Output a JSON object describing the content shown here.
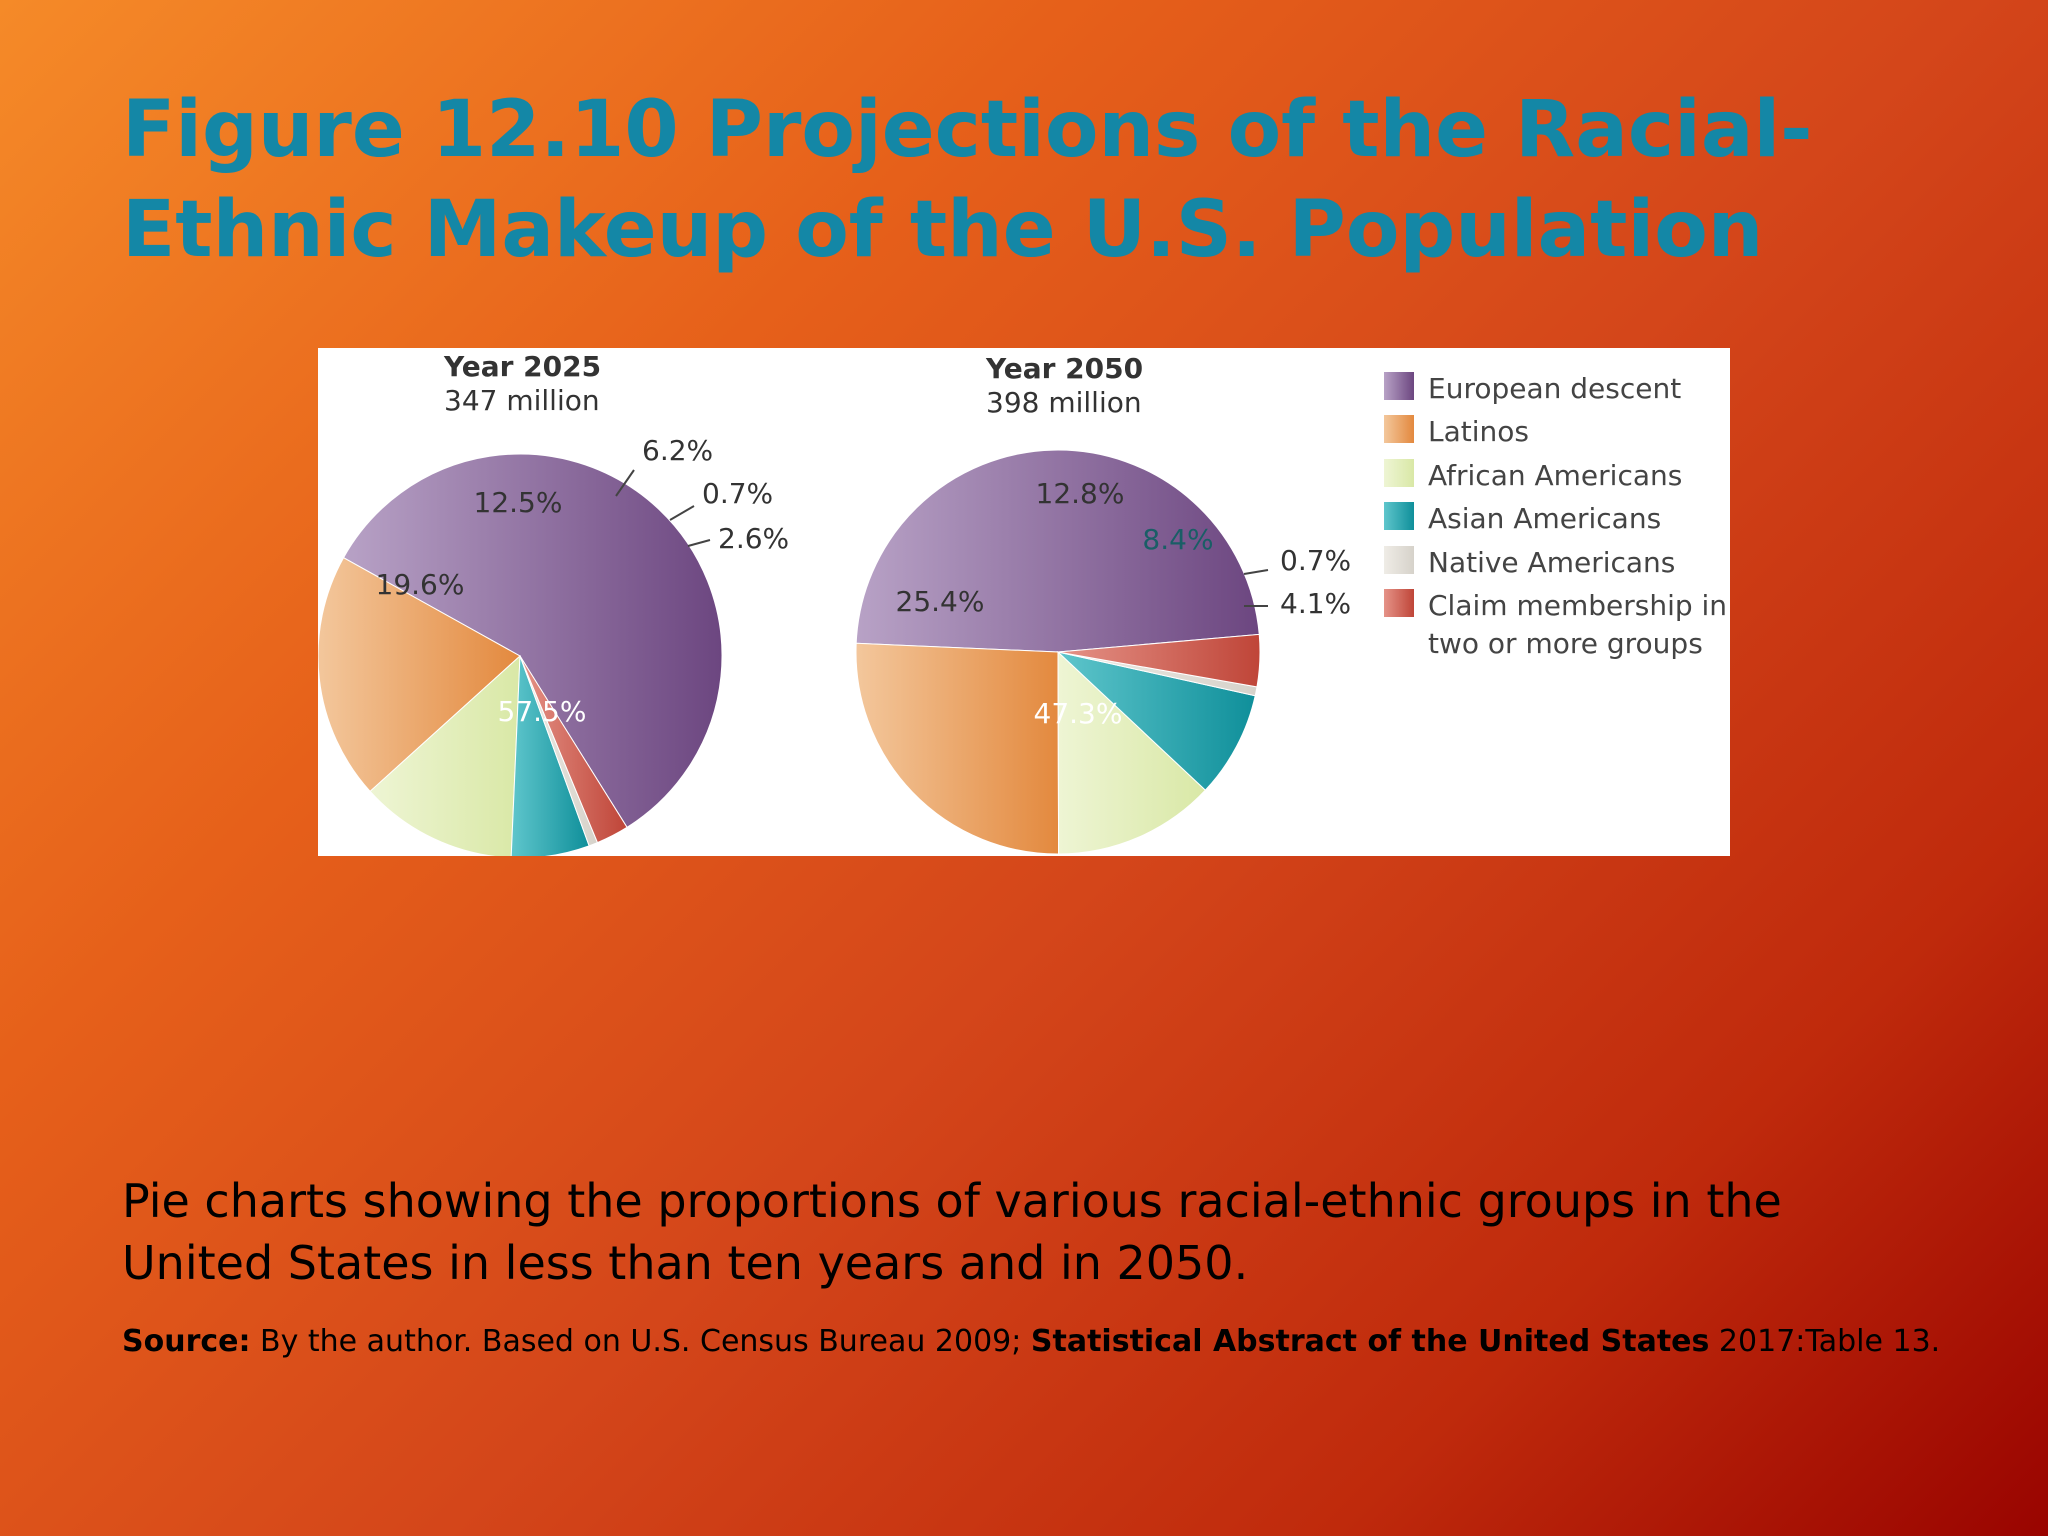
{
  "title": "Figure 12.10 Projections of the Racial-Ethnic Makeup of the U.S. Population",
  "caption": "Pie charts showing the proportions of various racial-ethnic groups in the United States in less than ten years and in 2050.",
  "source": {
    "label": "Source:",
    "text1": " By the author. Based on U.S. Census Bureau 2009; ",
    "bold_title": "Statistical Abstract of the United States",
    "text2": " 2017:Table 13."
  },
  "legend": [
    {
      "label": "European descent",
      "color": "#7a5489"
    },
    {
      "label": "Latinos",
      "color": "#e8994f"
    },
    {
      "label": "African Americans",
      "color": "#e1ecb6"
    },
    {
      "label": "Asian Americans",
      "color": "#159da6"
    },
    {
      "label": "Native Americans",
      "color": "#e3e0d9"
    },
    {
      "label": "Claim membership in",
      "label_line2": "two or more groups",
      "color": "#c85447"
    }
  ],
  "chart_data": [
    {
      "type": "pie",
      "title": "Year 2025",
      "subtitle": "347 million",
      "categories": [
        "European descent",
        "Latinos",
        "African Americans",
        "Asian Americans",
        "Native Americans",
        "Claim membership in two or more groups"
      ],
      "values": [
        57.5,
        19.6,
        12.5,
        6.2,
        0.7,
        2.6
      ],
      "labels": [
        "57.5%",
        "19.6%",
        "12.5%",
        "6.2%",
        "0.7%",
        "2.6%"
      ]
    },
    {
      "type": "pie",
      "title": "Year 2050",
      "subtitle": "398 million",
      "categories": [
        "European descent",
        "Latinos",
        "African Americans",
        "Asian Americans",
        "Native Americans",
        "Claim membership in two or more groups"
      ],
      "values": [
        47.3,
        25.4,
        12.8,
        8.4,
        0.7,
        4.1
      ],
      "labels": [
        "47.3%",
        "25.4%",
        "12.8%",
        "8.4%",
        "0.7%",
        "4.1%"
      ]
    }
  ]
}
